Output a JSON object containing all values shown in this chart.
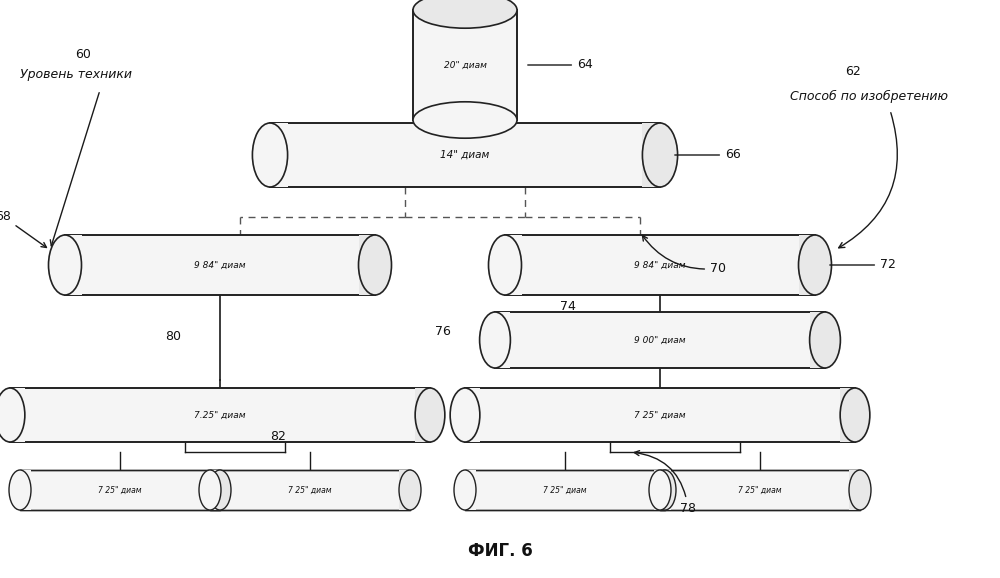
{
  "title": "ФИГ. 6",
  "bg": "#ffffff",
  "lc": "#1a1a1a",
  "tc": "#111111",
  "cc": "#f5f5f5",
  "ec": "#222222",
  "dc": "#555555",
  "label_60": "60",
  "label_60_text": "Уровень техники",
  "label_62": "62",
  "label_62_text": "Способ по изобретению",
  "label_64": "64",
  "label_66": "66",
  "label_68": "68",
  "label_70": "70",
  "label_72": "72",
  "label_74": "74",
  "label_76": "76",
  "label_78": "78",
  "label_80": "80",
  "label_82": "82",
  "drum64_label": "20\" диам",
  "cyl66_label": "14\" диам",
  "cyl68_label": "9 84\" диам",
  "cyl72_label": "9 84\" диам",
  "cyl76_label": "9 00\" диам",
  "cyl78_label": "7 25\" диам",
  "cyl_left_label": "7.25\" диам",
  "cyl_small_label": "7 25\" диам"
}
